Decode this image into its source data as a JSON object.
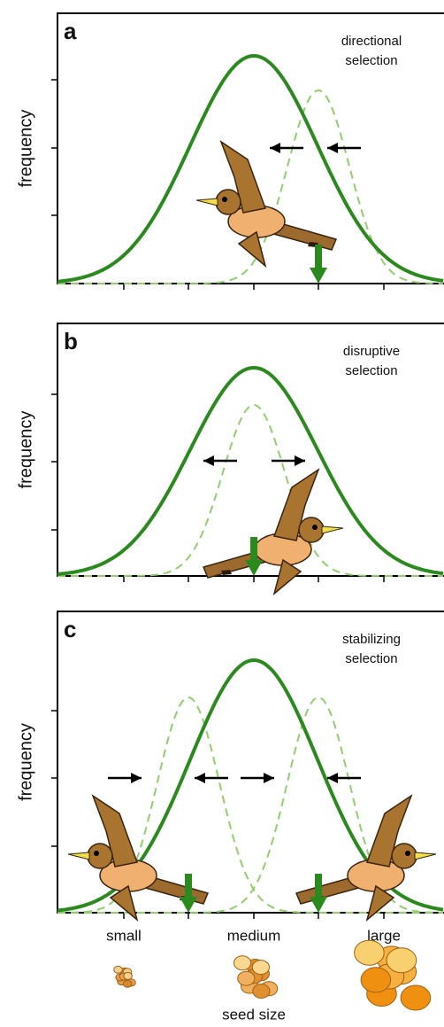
{
  "panels": [
    {
      "letter": "a",
      "label": [
        "directional",
        "selection"
      ],
      "y_label": "frequency"
    },
    {
      "letter": "b",
      "label": [
        "disruptive",
        "selection"
      ],
      "y_label": "frequency"
    },
    {
      "letter": "c",
      "label": [
        "stabilizing",
        "selection"
      ],
      "y_label": "frequency"
    }
  ],
  "x_labels": [
    "small",
    "medium",
    "large"
  ],
  "x_title": "seed size"
}
